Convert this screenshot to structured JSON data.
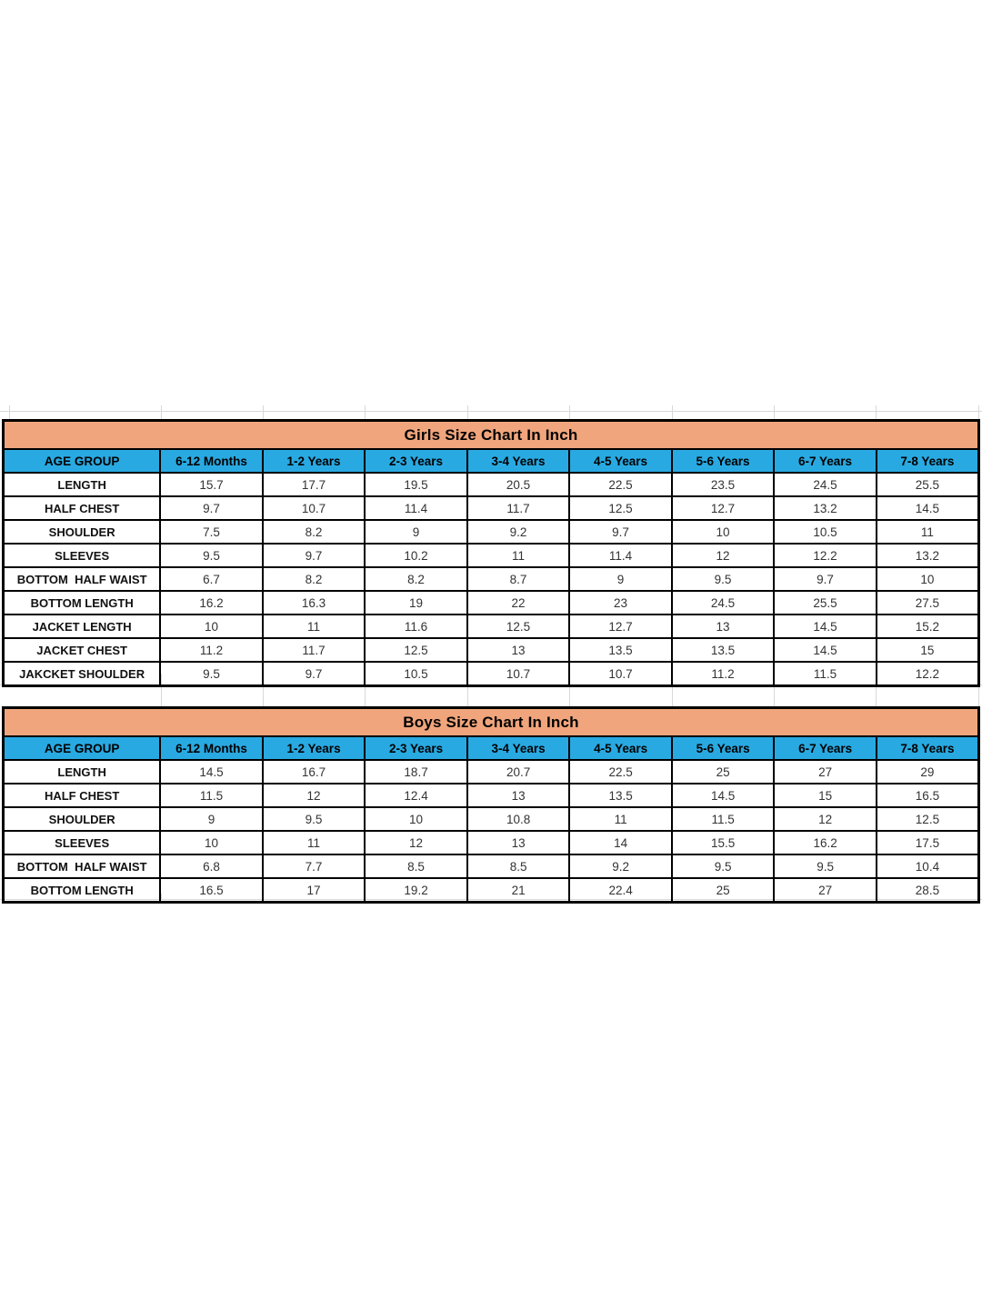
{
  "colors": {
    "title_bg": "#F0A57C",
    "header_bg": "#29A9E1",
    "table_border": "#000000",
    "gridline": "#D8D8D8",
    "label_text": "#111111",
    "value_text": "#333333"
  },
  "girls_table": {
    "title": "Girls Size Chart In Inch",
    "columns": [
      "AGE GROUP",
      "6-12 Months",
      "1-2 Years",
      "2-3 Years",
      "3-4 Years",
      "4-5 Years",
      "5-6 Years",
      "6-7 Years",
      "7-8 Years"
    ],
    "rows": [
      {
        "label": "LENGTH",
        "values": [
          "15.7",
          "17.7",
          "19.5",
          "20.5",
          "22.5",
          "23.5",
          "24.5",
          "25.5"
        ]
      },
      {
        "label": "HALF CHEST",
        "values": [
          "9.7",
          "10.7",
          "11.4",
          "11.7",
          "12.5",
          "12.7",
          "13.2",
          "14.5"
        ]
      },
      {
        "label": "SHOULDER",
        "values": [
          "7.5",
          "8.2",
          "9",
          "9.2",
          "9.7",
          "10",
          "10.5",
          "11"
        ]
      },
      {
        "label": "SLEEVES",
        "values": [
          "9.5",
          "9.7",
          "10.2",
          "11",
          "11.4",
          "12",
          "12.2",
          "13.2"
        ]
      },
      {
        "label": "BOTTOM  HALF WAIST",
        "values": [
          "6.7",
          "8.2",
          "8.2",
          "8.7",
          "9",
          "9.5",
          "9.7",
          "10"
        ]
      },
      {
        "label": "BOTTOM LENGTH",
        "values": [
          "16.2",
          "16.3",
          "19",
          "22",
          "23",
          "24.5",
          "25.5",
          "27.5"
        ]
      },
      {
        "label": "JACKET LENGTH",
        "values": [
          "10",
          "11",
          "11.6",
          "12.5",
          "12.7",
          "13",
          "14.5",
          "15.2"
        ]
      },
      {
        "label": "JACKET CHEST",
        "values": [
          "11.2",
          "11.7",
          "12.5",
          "13",
          "13.5",
          "13.5",
          "14.5",
          "15"
        ]
      },
      {
        "label": "JAKCKET SHOULDER",
        "values": [
          "9.5",
          "9.7",
          "10.5",
          "10.7",
          "10.7",
          "11.2",
          "11.5",
          "12.2"
        ]
      }
    ]
  },
  "boys_table": {
    "title": "Boys Size Chart In Inch",
    "columns": [
      "AGE GROUP",
      "6-12 Months",
      "1-2 Years",
      "2-3 Years",
      "3-4 Years",
      "4-5 Years",
      "5-6 Years",
      "6-7 Years",
      "7-8 Years"
    ],
    "rows": [
      {
        "label": "LENGTH",
        "values": [
          "14.5",
          "16.7",
          "18.7",
          "20.7",
          "22.5",
          "25",
          "27",
          "29"
        ]
      },
      {
        "label": "HALF CHEST",
        "values": [
          "11.5",
          "12",
          "12.4",
          "13",
          "13.5",
          "14.5",
          "15",
          "16.5"
        ]
      },
      {
        "label": "SHOULDER",
        "values": [
          "9",
          "9.5",
          "10",
          "10.8",
          "11",
          "11.5",
          "12",
          "12.5"
        ]
      },
      {
        "label": "SLEEVES",
        "values": [
          "10",
          "11",
          "12",
          "13",
          "14",
          "15.5",
          "16.2",
          "17.5"
        ]
      },
      {
        "label": "BOTTOM  HALF WAIST",
        "values": [
          "6.8",
          "7.7",
          "8.5",
          "8.5",
          "9.2",
          "9.5",
          "9.5",
          "10.4"
        ]
      },
      {
        "label": "BOTTOM LENGTH",
        "values": [
          "16.5",
          "17",
          "19.2",
          "21",
          "22.4",
          "25",
          "27",
          "28.5"
        ]
      }
    ]
  }
}
